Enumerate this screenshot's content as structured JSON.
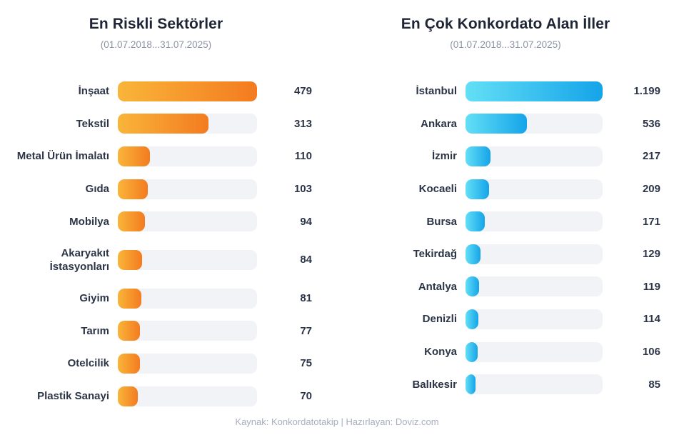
{
  "chart_data": [
    {
      "type": "bar",
      "orientation": "horizontal",
      "title": "En Riskli Sektörler",
      "subtitle": "(01.07.2018...31.07.2025)",
      "categories": [
        "İnşaat",
        "Tekstil",
        "Metal Ürün İmalatı",
        "Gıda",
        "Mobilya",
        "Akaryakıt İstasyonları",
        "Giyim",
        "Tarım",
        "Otelcilik",
        "Plastik Sanayi"
      ],
      "values": [
        479,
        313,
        110,
        103,
        94,
        84,
        81,
        77,
        75,
        70
      ],
      "value_labels": [
        "479",
        "313",
        "110",
        "103",
        "94",
        "84",
        "81",
        "77",
        "75",
        "70"
      ],
      "xlim": [
        0,
        479
      ],
      "grid": false,
      "legend": false,
      "bar_gradient": [
        "#F9B53A",
        "#F37B20"
      ],
      "track_color": "#F1F3F6"
    },
    {
      "type": "bar",
      "orientation": "horizontal",
      "title": "En Çok Konkordato Alan İller",
      "subtitle": "(01.07.2018...31.07.2025)",
      "categories": [
        "İstanbul",
        "Ankara",
        "İzmir",
        "Kocaeli",
        "Bursa",
        "Tekirdağ",
        "Antalya",
        "Denizli",
        "Konya",
        "Balıkesir"
      ],
      "values": [
        1199,
        536,
        217,
        209,
        171,
        129,
        119,
        114,
        106,
        85
      ],
      "value_labels": [
        "1.199",
        "536",
        "217",
        "209",
        "171",
        "129",
        "119",
        "114",
        "106",
        "85"
      ],
      "xlim": [
        0,
        1199
      ],
      "grid": false,
      "legend": false,
      "bar_gradient": [
        "#63DFF6",
        "#15A4E9"
      ],
      "track_color": "#F1F3F6"
    }
  ],
  "footer": {
    "text": "Kaynak: Konkordatotakip | Hazırlayan: Doviz.com"
  },
  "colors": {
    "title_text": "#1e2636",
    "label_text": "#2c3547",
    "subtitle_text": "#8b93a4",
    "footer_text": "#a7aebe",
    "background": "#ffffff"
  }
}
